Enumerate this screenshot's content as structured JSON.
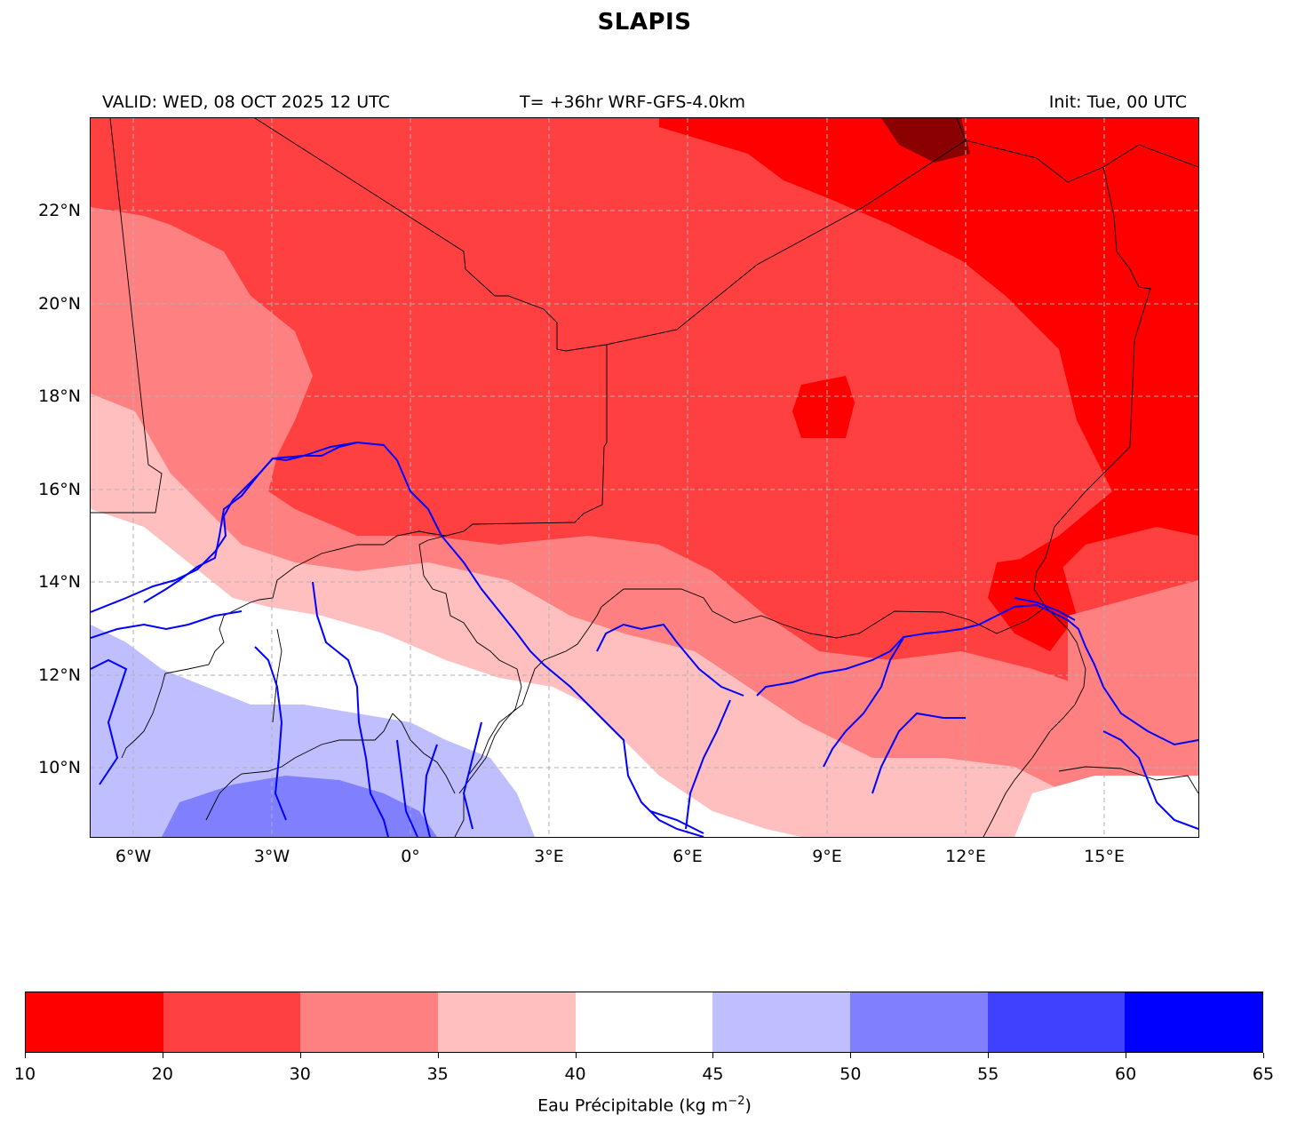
{
  "title": "SLAPIS",
  "subtitle": {
    "valid": "VALID: WED, 08 OCT 2025 12 UTC",
    "forecast": "T= +36hr WRF-GFS-4.0km",
    "init": "Init: Tue, 00 UTC"
  },
  "map": {
    "lat_labels": [
      "22°N",
      "20°N",
      "18°N",
      "16°N",
      "14°N",
      "12°N",
      "10°N"
    ],
    "lon_labels": [
      "6°W",
      "3°W",
      "0°",
      "3°E",
      "6°E",
      "9°E",
      "12°E",
      "15°E"
    ],
    "extent": {
      "lon_min": -7,
      "lon_max": 17,
      "lat_min": 8.5,
      "lat_max": 24
    },
    "colors": {
      "country_border": "#000000",
      "river": "#0000ff",
      "grid": "#b0b0b0"
    }
  },
  "colorbar": {
    "ticks": [
      "10",
      "20",
      "30",
      "35",
      "40",
      "45",
      "50",
      "55",
      "60",
      "65"
    ],
    "colors": [
      "#ff0000",
      "#ff4040",
      "#ff8080",
      "#ffbfbf",
      "#ffffff",
      "#bfbfff",
      "#8080ff",
      "#4040ff",
      "#0000ff"
    ],
    "label_main": "Eau Précipitable (kg m",
    "label_exp": "−2",
    "label_end": ")"
  }
}
